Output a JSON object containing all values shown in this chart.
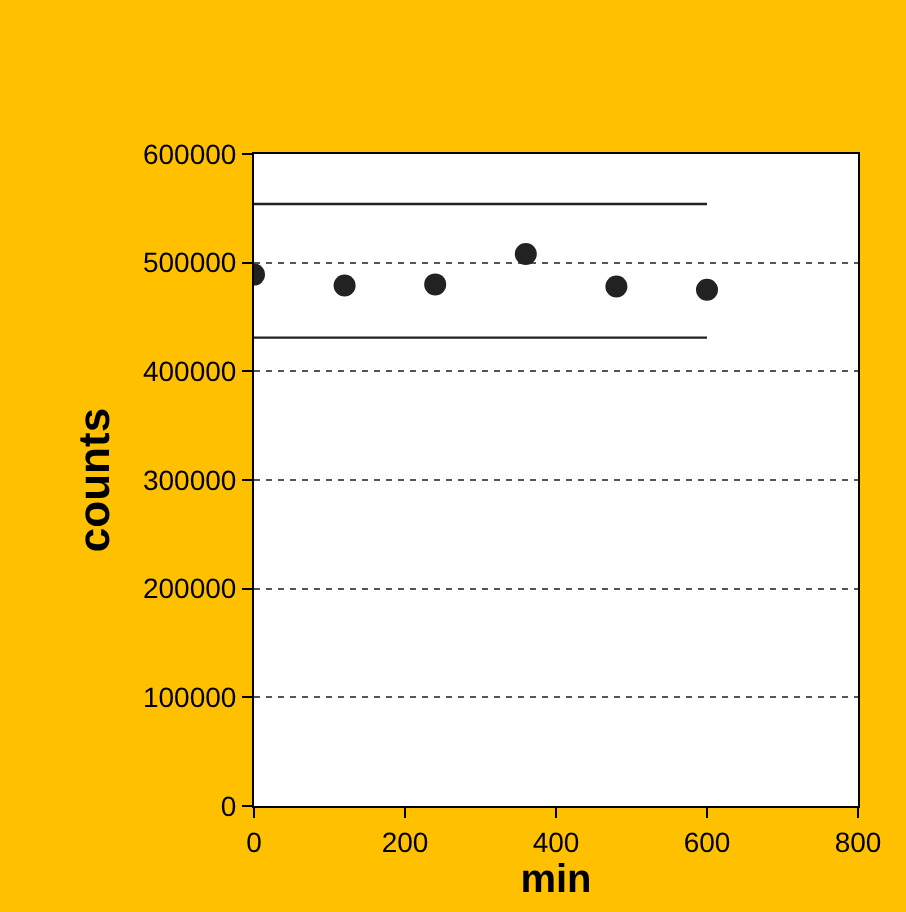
{
  "chart_data": {
    "type": "scatter",
    "xlabel": "min",
    "ylabel": "counts",
    "xlim": [
      0,
      800
    ],
    "xticks": [
      0,
      200,
      400,
      600,
      800
    ],
    "ylim": [
      0,
      600000
    ],
    "yticks": [
      0,
      100000,
      200000,
      300000,
      400000,
      500000,
      600000
    ],
    "grid": "y",
    "marker": "circle",
    "series": [
      {
        "color": "#222222",
        "x": [
          0,
          120,
          240,
          360,
          480,
          600
        ],
        "values": [
          489000,
          479000,
          480000,
          508000,
          478000,
          475000
        ]
      },
      {
        "type": "line",
        "color": "#222222",
        "x": [
          0,
          600
        ],
        "values": [
          554000,
          554000
        ],
        "line_style": "solid",
        "marker": "none"
      },
      {
        "type": "line",
        "color": "#222222",
        "x": [
          0,
          600
        ],
        "values": [
          431000,
          431000
        ],
        "line_style": "solid",
        "marker": "none"
      }
    ]
  }
}
